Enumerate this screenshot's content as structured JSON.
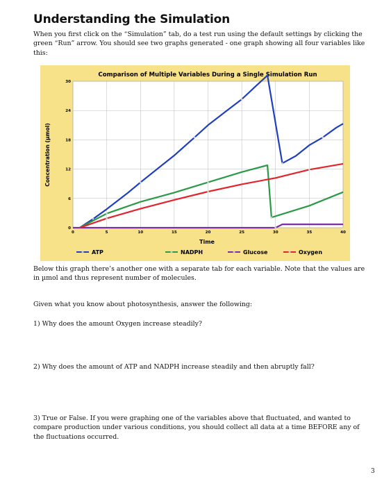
{
  "page": {
    "heading": "Understanding the Simulation",
    "intro": "When you first click on the “Simulation” tab, do a test run using the default settings by clicking the green “Run” arrow. You should see two graphs generated - one graph showing all four variables like this:",
    "after_chart": "Below this graph there’s another one with a separate tab for each variable. Note that the values are in µmol and thus represent number of molecules.",
    "prompt": "Given what you know about photosynthesis, answer the following:",
    "q1": "1) Why does the amount Oxygen increase steadily?",
    "q2": "2) Why does the amount of ATP and NADPH increase steadily and then abruptly fall?",
    "q3": "3) True or False. If you were graphing one of the variables above that fluctuated, and wanted to compare production under various conditions, you should collect all data at a time BEFORE any of the fluctuations occurred.",
    "page_number": "3"
  },
  "chart_data": {
    "type": "line",
    "title": "Comparison of Multiple Variables During a Single Simulation Run",
    "xlabel": "Time",
    "ylabel": "Concentration (µmol)",
    "xlim": [
      0,
      40
    ],
    "ylim": [
      0,
      30
    ],
    "x_ticks": [
      0,
      5,
      10,
      15,
      20,
      25,
      30,
      35,
      40
    ],
    "y_ticks": [
      0,
      6,
      12,
      18,
      24,
      30
    ],
    "grid": true,
    "legend_position": "bottom",
    "background": "#f7e28a",
    "series": [
      {
        "name": "ATP",
        "color": "#1f3fbf",
        "x": [
          1,
          3,
          5,
          8,
          10,
          13,
          15,
          18,
          20,
          23,
          25,
          27,
          28.8,
          31,
          33,
          35,
          37,
          39,
          40
        ],
        "y": [
          0,
          1.8,
          3.8,
          7,
          9.3,
          12.6,
          14.8,
          18.5,
          21,
          24.2,
          26.3,
          28.9,
          31.2,
          13.2,
          14.7,
          16.9,
          18.5,
          20.5,
          21.3
        ]
      },
      {
        "name": "NADPH",
        "color": "#2a9a46",
        "x": [
          1,
          5,
          10,
          15,
          20,
          25,
          28.8,
          29.4,
          35,
          40
        ],
        "y": [
          0,
          2.9,
          5.3,
          7.2,
          9.3,
          11.4,
          12.8,
          2.1,
          4.5,
          7.3
        ]
      },
      {
        "name": "Glucose",
        "color": "#7a2ea0",
        "x": [
          0,
          30,
          31,
          40
        ],
        "y": [
          0,
          0,
          0.7,
          0.7
        ]
      },
      {
        "name": "Oxygen",
        "color": "#e3242b",
        "x": [
          1,
          5,
          10,
          15,
          20,
          25,
          30,
          35,
          40
        ],
        "y": [
          0,
          1.9,
          3.9,
          5.7,
          7.4,
          8.9,
          10.2,
          11.9,
          13.1
        ]
      }
    ]
  }
}
